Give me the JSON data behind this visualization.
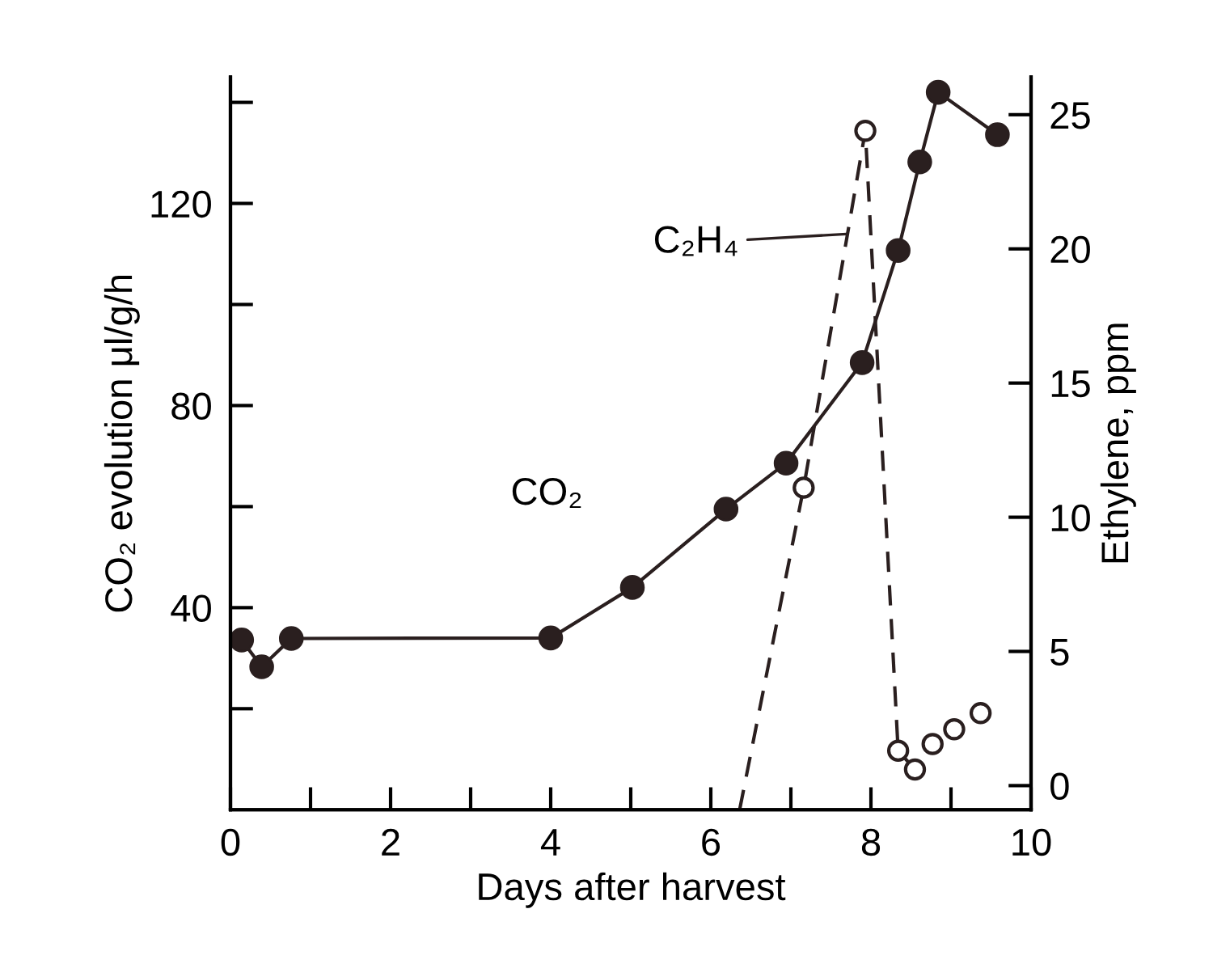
{
  "chart_data": {
    "type": "line",
    "xlabel": "Days after harvest",
    "ylabel": "CO₂ evolution μl/g/h",
    "y2label": "Ethylene, ppm",
    "xlim": [
      0,
      10
    ],
    "xticks": [
      0,
      {
        "value": 1,
        "label": null
      },
      2,
      {
        "value": 3,
        "label": null
      },
      4,
      {
        "value": 5,
        "label": null
      },
      6,
      {
        "value": 7,
        "label": null
      },
      8,
      {
        "value": 9,
        "label": null
      },
      10
    ],
    "ylim": [
      0,
      145
    ],
    "yticks": [
      {
        "value": 20,
        "label": null
      },
      40,
      {
        "value": 60,
        "label": null
      },
      80,
      {
        "value": 100,
        "label": null
      },
      120,
      {
        "value": 140,
        "label": null
      }
    ],
    "y2lim": [
      -0.9,
      26.4
    ],
    "y2ticks": [
      0,
      5,
      10,
      15,
      20,
      25
    ],
    "grid": false,
    "series": [
      {
        "color": "#2a1f1f",
        "marker": "circle",
        "line_style": "solid",
        "x": [
          0.14,
          0.39,
          0.76,
          4.0,
          5.02,
          6.19,
          6.94,
          7.89,
          8.34,
          8.61,
          8.84,
          9.58
        ],
        "values": [
          33.6,
          28.3,
          33.9,
          34,
          44,
          59.5,
          68.6,
          88.5,
          110.7,
          128.2,
          142,
          133.6
        ]
      },
      {
        "type": "line",
        "axis": "y2",
        "color": "#2a1f1f",
        "marker": "none",
        "line_style": "dashed",
        "x": [
          6.36,
          7.16,
          7.93,
          8.34,
          8.55
        ],
        "values": [
          -0.9,
          11.1,
          24.4,
          1.3,
          0.6
        ]
      },
      {
        "type": "scatter",
        "axis": "y2",
        "color": "#2a1f1f",
        "marker": "circle",
        "x": [
          7.16,
          7.93,
          8.34,
          8.55,
          8.77,
          9.04,
          9.37
        ],
        "values": [
          11.1,
          24.4,
          1.3,
          0.6,
          1.55,
          2.1,
          2.7
        ]
      }
    ],
    "annotations": [
      {
        "text": "C₂H₄",
        "x": 7.75,
        "y": 114
      },
      "CO₂"
    ]
  }
}
